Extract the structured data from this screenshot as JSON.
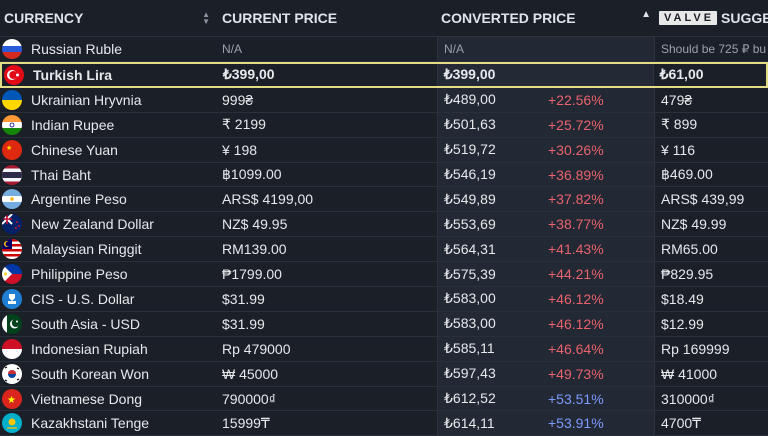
{
  "columns": {
    "currency": "CURRENCY",
    "current_price": "CURRENT PRICE",
    "converted_price": "CONVERTED PRICE",
    "valve_badge": "VALVE",
    "suggested": "SUGGE"
  },
  "rows": [
    {
      "currency": "Russian Ruble",
      "current": "N/A",
      "converted": "N/A",
      "diff": "",
      "suggested": "Should be 725 ₽ bu",
      "flag": "russia-flag",
      "muted": true
    },
    {
      "currency": "Turkish Lira",
      "current": "₺399,00",
      "converted": "₺399,00",
      "diff": "",
      "suggested": "₺61,00",
      "flag": "turkey-flag",
      "highlight": true
    },
    {
      "currency": "Ukrainian Hryvnia",
      "current": "999₴",
      "converted": "₺489,00",
      "diff": "+22.56%",
      "suggested": "479₴",
      "flag": "ukraine-flag",
      "tone": "red"
    },
    {
      "currency": "Indian Rupee",
      "current": "₹ 2199",
      "converted": "₺501,63",
      "diff": "+25.72%",
      "suggested": "₹ 899",
      "flag": "india-flag",
      "tone": "red"
    },
    {
      "currency": "Chinese Yuan",
      "current": "¥ 198",
      "converted": "₺519,72",
      "diff": "+30.26%",
      "suggested": "¥ 116",
      "flag": "china-flag",
      "tone": "red"
    },
    {
      "currency": "Thai Baht",
      "current": "฿1099.00",
      "converted": "₺546,19",
      "diff": "+36.89%",
      "suggested": "฿469.00",
      "flag": "thailand-flag",
      "tone": "red"
    },
    {
      "currency": "Argentine Peso",
      "current": "ARS$ 4199,00",
      "converted": "₺549,89",
      "diff": "+37.82%",
      "suggested": "ARS$ 439,99",
      "flag": "argentina-flag",
      "tone": "red"
    },
    {
      "currency": "New Zealand Dollar",
      "current": "NZ$ 49.95",
      "converted": "₺553,69",
      "diff": "+38.77%",
      "suggested": "NZ$ 49.99",
      "flag": "new-zealand-flag",
      "tone": "red"
    },
    {
      "currency": "Malaysian Ringgit",
      "current": "RM139.00",
      "converted": "₺564,31",
      "diff": "+41.43%",
      "suggested": "RM65.00",
      "flag": "malaysia-flag",
      "tone": "red"
    },
    {
      "currency": "Philippine Peso",
      "current": "₱1799.00",
      "converted": "₺575,39",
      "diff": "+44.21%",
      "suggested": "₱829.95",
      "flag": "philippines-flag",
      "tone": "red"
    },
    {
      "currency": "CIS - U.S. Dollar",
      "current": "$31.99",
      "converted": "₺583,00",
      "diff": "+46.12%",
      "suggested": "$18.49",
      "flag": "cis-flag",
      "tone": "red"
    },
    {
      "currency": "South Asia - USD",
      "current": "$31.99",
      "converted": "₺583,00",
      "diff": "+46.12%",
      "suggested": "$12.99",
      "flag": "pakistan-flag",
      "tone": "red"
    },
    {
      "currency": "Indonesian Rupiah",
      "current": "Rp 479000",
      "converted": "₺585,11",
      "diff": "+46.64%",
      "suggested": "Rp 169999",
      "flag": "indonesia-flag",
      "tone": "red"
    },
    {
      "currency": "South Korean Won",
      "current": "₩ 45000",
      "converted": "₺597,43",
      "diff": "+49.73%",
      "suggested": "₩ 41000",
      "flag": "south-korea-flag",
      "tone": "red"
    },
    {
      "currency": "Vietnamese Dong",
      "current": "790000₫",
      "converted": "₺612,52",
      "diff": "+53.51%",
      "suggested": "310000₫",
      "flag": "vietnam-flag",
      "tone": "blue"
    },
    {
      "currency": "Kazakhstani Tenge",
      "current": "15999₸",
      "converted": "₺614,11",
      "diff": "+53.91%",
      "suggested": "4700₸",
      "flag": "kazakhstan-flag",
      "tone": "blue"
    }
  ],
  "colors": {
    "highlight_border": "#e3dc86",
    "positive_red": "#e8636b",
    "positive_blue": "#7b9bff",
    "background": "#1b1f27"
  }
}
